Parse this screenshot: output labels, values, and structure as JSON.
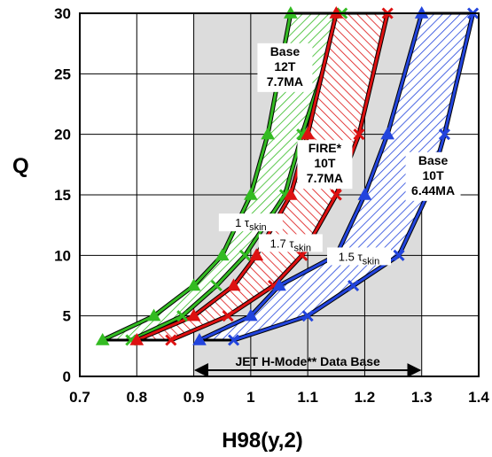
{
  "chart_data": {
    "type": "area",
    "xlabel": "H98(y,2)",
    "ylabel": "Q",
    "xlim": [
      0.7,
      1.4
    ],
    "ylim": [
      0,
      30
    ],
    "x_ticks": [
      "0.7",
      "0.8",
      "0.9",
      "1",
      "1.1",
      "1.2",
      "1.3",
      "1.4"
    ],
    "y_ticks": [
      "0",
      "5",
      "10",
      "15",
      "20",
      "25",
      "30"
    ],
    "grid": true,
    "shaded_region": {
      "x_from": 0.9,
      "x_to": 1.3,
      "color": "#dcdcdc"
    },
    "data_base_label": "JET H-Mode** Data Base",
    "series": [
      {
        "color": "#33bb22",
        "marker_left": "triangle",
        "marker_right": "x",
        "left": [
          [
            0.74,
            3
          ],
          [
            0.83,
            5
          ],
          [
            0.9,
            7.5
          ],
          [
            0.95,
            10
          ],
          [
            1.0,
            15
          ],
          [
            1.03,
            20
          ],
          [
            1.07,
            30
          ]
        ],
        "right": [
          [
            0.79,
            3
          ],
          [
            0.88,
            5
          ],
          [
            0.94,
            7.5
          ],
          [
            0.99,
            10
          ],
          [
            1.06,
            15
          ],
          [
            1.09,
            20
          ],
          [
            1.16,
            30
          ]
        ]
      },
      {
        "color": "#dd1111",
        "marker_left": "triangle",
        "marker_right": "x",
        "left": [
          [
            0.8,
            3
          ],
          [
            0.9,
            5
          ],
          [
            0.97,
            7.5
          ],
          [
            1.01,
            10
          ],
          [
            1.07,
            15
          ],
          [
            1.1,
            20
          ],
          [
            1.15,
            30
          ]
        ],
        "right": [
          [
            0.86,
            3
          ],
          [
            0.96,
            5
          ],
          [
            1.04,
            7.5
          ],
          [
            1.09,
            10
          ],
          [
            1.15,
            15
          ],
          [
            1.19,
            20
          ],
          [
            1.24,
            30
          ]
        ]
      },
      {
        "color": "#2244dd",
        "marker_left": "triangle",
        "marker_right": "x",
        "left": [
          [
            0.91,
            3
          ],
          [
            1.0,
            5
          ],
          [
            1.05,
            7.5
          ],
          [
            1.15,
            10
          ],
          [
            1.2,
            15
          ],
          [
            1.24,
            20
          ],
          [
            1.3,
            30
          ]
        ],
        "right": [
          [
            0.97,
            3
          ],
          [
            1.1,
            5
          ],
          [
            1.18,
            7.5
          ],
          [
            1.26,
            10
          ],
          [
            1.31,
            15
          ],
          [
            1.34,
            20
          ],
          [
            1.39,
            30
          ]
        ]
      }
    ],
    "annotations": [
      {
        "lines": [
          "Base",
          "12T",
          "7.7MA"
        ],
        "x": 1.06,
        "y": 26.5
      },
      {
        "lines": [
          "FIRE*",
          "10T",
          "7.7MA"
        ],
        "x": 1.13,
        "y": 18.5
      },
      {
        "lines": [
          "Base",
          "10T",
          "6.44MA"
        ],
        "x": 1.32,
        "y": 17.5
      }
    ],
    "tau_labels": [
      {
        "coef": "1",
        "sym": "τ",
        "sub": "skin",
        "x": 1.0,
        "y": 12.5
      },
      {
        "coef": "1.7",
        "sym": "τ",
        "sub": "skin",
        "x": 1.07,
        "y": 10.8
      },
      {
        "coef": "1.5",
        "sym": "τ",
        "sub": "skin",
        "x": 1.19,
        "y": 9.7
      }
    ]
  }
}
